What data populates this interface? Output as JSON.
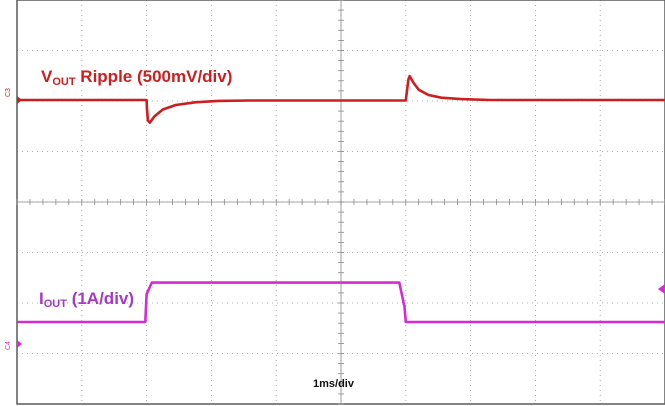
{
  "chart_data": {
    "type": "line",
    "title": "",
    "time_scale_label": "1ms/div",
    "divisions": {
      "x": 10,
      "y": 8
    },
    "colors": {
      "ch3": "#cc1f1f",
      "ch4": "#d62ad6",
      "grid": "#9a9a9a",
      "frame": "#5a5a5a"
    },
    "series": [
      {
        "name": "VOUT Ripple (500mV/div)",
        "channel_tag": "C3",
        "label_main": "V",
        "label_sub": "OUT",
        "label_rest": " Ripple (500mV/div)",
        "x": [
          0,
          2.0,
          2.005,
          2.02,
          2.05,
          2.12,
          2.25,
          2.45,
          2.75,
          3.1,
          3.6,
          6.0,
          6.02,
          6.04,
          6.06,
          6.12,
          6.2,
          6.35,
          6.55,
          6.85,
          7.3,
          10
        ],
        "y": [
          0.0,
          0.0,
          -0.35,
          -0.9,
          -1.0,
          -0.72,
          -0.42,
          -0.22,
          -0.1,
          -0.04,
          -0.02,
          -0.02,
          0.45,
          0.9,
          1.05,
          0.75,
          0.45,
          0.22,
          0.1,
          0.04,
          0.0,
          0.0
        ]
      },
      {
        "name": "IOUT (1A/div)",
        "channel_tag": "C4",
        "label_main": "I",
        "label_sub": "OUT",
        "label_rest": " (1A/div)",
        "x": [
          0,
          1.98,
          2.0,
          2.08,
          5.9,
          5.98,
          6.0,
          10
        ],
        "y": [
          0.0,
          0.0,
          0.55,
          0.78,
          0.78,
          0.3,
          0.0,
          0.0
        ]
      }
    ]
  }
}
